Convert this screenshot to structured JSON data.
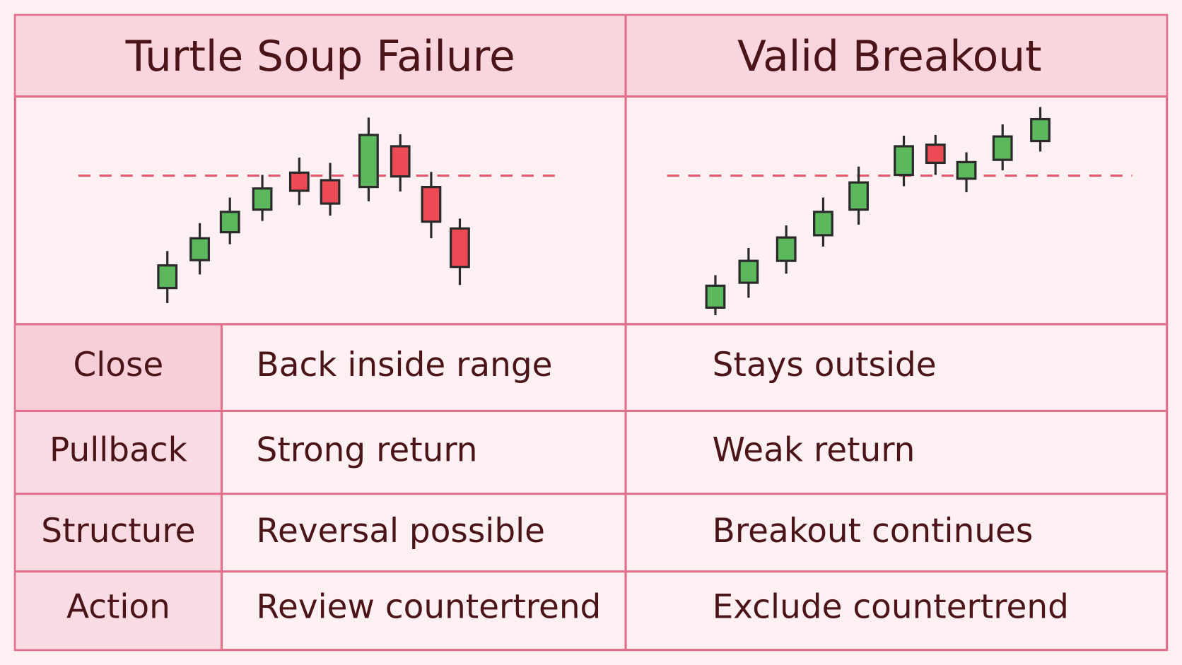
{
  "header": {
    "columns": [
      "Turtle Soup Failure",
      "Valid Breakout"
    ]
  },
  "table": {
    "rows": [
      [
        "Close",
        "Back inside range",
        "Stays outside"
      ],
      [
        "Pullback",
        "Strong return",
        "Weak return"
      ],
      [
        "Structure",
        "Reversal possible",
        "Breakout continues"
      ],
      [
        "Action",
        "Review countertrend",
        "Exclude countertrend"
      ]
    ]
  }
}
